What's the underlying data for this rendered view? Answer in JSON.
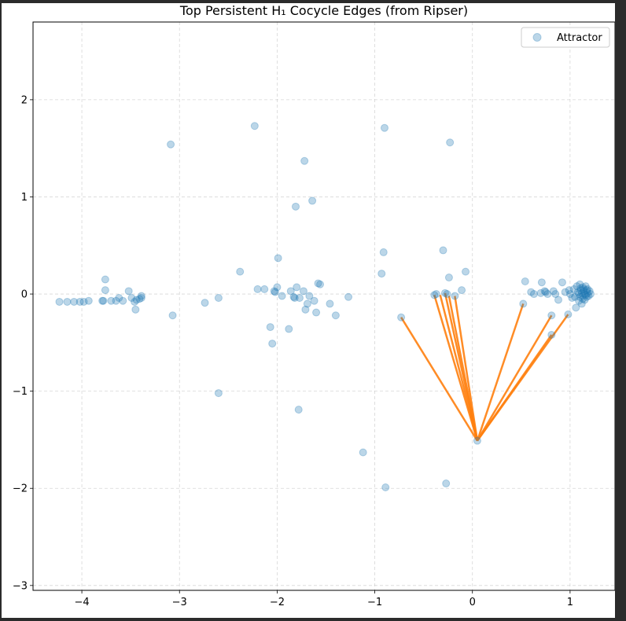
{
  "chart_data": {
    "type": "scatter",
    "title": "Top Persistent H₁ Cocycle Edges (from Ripser)",
    "xlabel": "",
    "ylabel": "",
    "xlim": [
      -4.5,
      1.46
    ],
    "ylim": [
      -3.05,
      2.8
    ],
    "x_ticks": [
      -4,
      -3,
      -2,
      -1,
      0,
      1
    ],
    "y_ticks": [
      -3,
      -2,
      -1,
      0,
      1,
      2
    ],
    "x_tick_labels": [
      "−4",
      "−3",
      "−2",
      "−1",
      "0",
      "1"
    ],
    "y_tick_labels": [
      "−3",
      "−2",
      "−1",
      "0",
      "1",
      "2"
    ],
    "grid": true,
    "legend_position": "top-right",
    "series": [
      {
        "name": "Attractor",
        "kind": "scatter",
        "color": "#1f77b4",
        "points": [
          [
            -4.23,
            -0.08
          ],
          [
            -4.15,
            -0.08
          ],
          [
            -4.08,
            -0.08
          ],
          [
            -4.02,
            -0.08
          ],
          [
            -3.98,
            -0.08
          ],
          [
            -3.93,
            -0.07
          ],
          [
            -3.79,
            -0.07
          ],
          [
            -3.78,
            -0.07
          ],
          [
            -3.76,
            0.04
          ],
          [
            -3.76,
            0.15
          ],
          [
            -3.7,
            -0.07
          ],
          [
            -3.65,
            -0.07
          ],
          [
            -3.62,
            -0.04
          ],
          [
            -3.58,
            -0.07
          ],
          [
            -3.52,
            0.03
          ],
          [
            -3.49,
            -0.04
          ],
          [
            -3.46,
            -0.08
          ],
          [
            -3.45,
            -0.16
          ],
          [
            -3.44,
            -0.06
          ],
          [
            -3.41,
            -0.05
          ],
          [
            -3.39,
            -0.02
          ],
          [
            -3.39,
            -0.04
          ],
          [
            -3.09,
            1.54
          ],
          [
            -3.07,
            -0.22
          ],
          [
            -2.74,
            -0.09
          ],
          [
            -2.6,
            -0.04
          ],
          [
            -2.6,
            -1.02
          ],
          [
            -2.38,
            0.23
          ],
          [
            -2.23,
            1.73
          ],
          [
            -2.2,
            0.05
          ],
          [
            -2.13,
            0.05
          ],
          [
            -2.07,
            -0.34
          ],
          [
            -2.05,
            -0.51
          ],
          [
            -2.03,
            0.03
          ],
          [
            -2.02,
            0.02
          ],
          [
            -2.0,
            0.07
          ],
          [
            -1.99,
            0.37
          ],
          [
            -1.95,
            -0.02
          ],
          [
            -1.88,
            -0.36
          ],
          [
            -1.86,
            0.03
          ],
          [
            -1.83,
            -0.03
          ],
          [
            -1.82,
            -0.04
          ],
          [
            -1.81,
            0.9
          ],
          [
            -1.8,
            0.07
          ],
          [
            -1.78,
            -1.19
          ],
          [
            -1.77,
            -0.04
          ],
          [
            -1.73,
            0.03
          ],
          [
            -1.72,
            1.37
          ],
          [
            -1.71,
            -0.16
          ],
          [
            -1.69,
            -0.1
          ],
          [
            -1.67,
            -0.02
          ],
          [
            -1.64,
            0.96
          ],
          [
            -1.62,
            -0.07
          ],
          [
            -1.6,
            -0.19
          ],
          [
            -1.58,
            0.11
          ],
          [
            -1.56,
            0.1
          ],
          [
            -1.46,
            -0.1
          ],
          [
            -1.4,
            -0.22
          ],
          [
            -1.27,
            -0.03
          ],
          [
            -1.12,
            -1.63
          ],
          [
            -0.93,
            0.21
          ],
          [
            -0.91,
            0.43
          ],
          [
            -0.9,
            1.71
          ],
          [
            -0.89,
            -1.99
          ],
          [
            -0.73,
            -0.24
          ],
          [
            -0.39,
            -0.01
          ],
          [
            -0.37,
            0.0
          ],
          [
            -0.3,
            0.45
          ],
          [
            -0.28,
            0.01
          ],
          [
            -0.27,
            -1.95
          ],
          [
            -0.26,
            0.0
          ],
          [
            -0.24,
            0.17
          ],
          [
            -0.23,
            1.56
          ],
          [
            -0.18,
            -0.02
          ],
          [
            -0.11,
            0.04
          ],
          [
            -0.07,
            0.23
          ],
          [
            0.05,
            -1.51
          ],
          [
            0.52,
            -0.1
          ],
          [
            0.54,
            0.13
          ],
          [
            0.6,
            0.02
          ],
          [
            0.63,
            0.0
          ],
          [
            0.7,
            0.01
          ],
          [
            0.71,
            0.12
          ],
          [
            0.74,
            0.03
          ],
          [
            0.75,
            0.02
          ],
          [
            0.77,
            0.0
          ],
          [
            0.81,
            -0.22
          ],
          [
            0.81,
            -0.42
          ],
          [
            0.83,
            0.03
          ],
          [
            0.85,
            0.0
          ],
          [
            0.88,
            -0.06
          ],
          [
            0.92,
            0.12
          ],
          [
            0.95,
            0.02
          ],
          [
            0.98,
            -0.21
          ],
          [
            0.99,
            0.04
          ],
          [
            1.0,
            0.0
          ],
          [
            1.02,
            -0.04
          ],
          [
            1.04,
            0.05
          ],
          [
            1.05,
            -0.03
          ],
          [
            1.06,
            -0.14
          ],
          [
            1.07,
            0.08
          ],
          [
            1.08,
            0.02
          ],
          [
            1.09,
            -0.07
          ],
          [
            1.1,
            0.1
          ],
          [
            1.1,
            -0.03
          ],
          [
            1.11,
            0.06
          ],
          [
            1.12,
            0.01
          ],
          [
            1.12,
            -0.1
          ],
          [
            1.13,
            0.07
          ],
          [
            1.13,
            -0.05
          ],
          [
            1.14,
            0.03
          ],
          [
            1.15,
            0.0
          ],
          [
            1.15,
            -0.06
          ],
          [
            1.16,
            0.08
          ],
          [
            1.17,
            0.04
          ],
          [
            1.17,
            -0.03
          ],
          [
            1.18,
            0.01
          ],
          [
            1.19,
            -0.02
          ],
          [
            1.2,
            0.03
          ],
          [
            1.21,
            0.0
          ],
          [
            1.09,
            0.0
          ],
          [
            1.11,
            0.04
          ],
          [
            1.13,
            -0.02
          ],
          [
            1.14,
            0.05
          ],
          [
            1.16,
            -0.01
          ],
          [
            1.18,
            0.05
          ]
        ]
      },
      {
        "name": "",
        "kind": "edges",
        "color": "#ff7f0e",
        "edges": [
          [
            [
              0.05,
              -1.51
            ],
            [
              -0.73,
              -0.24
            ]
          ],
          [
            [
              0.05,
              -1.51
            ],
            [
              -0.39,
              -0.01
            ]
          ],
          [
            [
              0.05,
              -1.51
            ],
            [
              -0.33,
              -0.01
            ]
          ],
          [
            [
              0.05,
              -1.51
            ],
            [
              -0.28,
              0.01
            ]
          ],
          [
            [
              0.05,
              -1.51
            ],
            [
              -0.24,
              -0.02
            ]
          ],
          [
            [
              0.05,
              -1.51
            ],
            [
              -0.18,
              -0.02
            ]
          ],
          [
            [
              0.05,
              -1.51
            ],
            [
              0.52,
              -0.1
            ]
          ],
          [
            [
              0.05,
              -1.51
            ],
            [
              0.81,
              -0.22
            ]
          ],
          [
            [
              0.05,
              -1.51
            ],
            [
              0.81,
              -0.42
            ]
          ],
          [
            [
              0.05,
              -1.51
            ],
            [
              0.98,
              -0.21
            ]
          ]
        ]
      }
    ]
  }
}
